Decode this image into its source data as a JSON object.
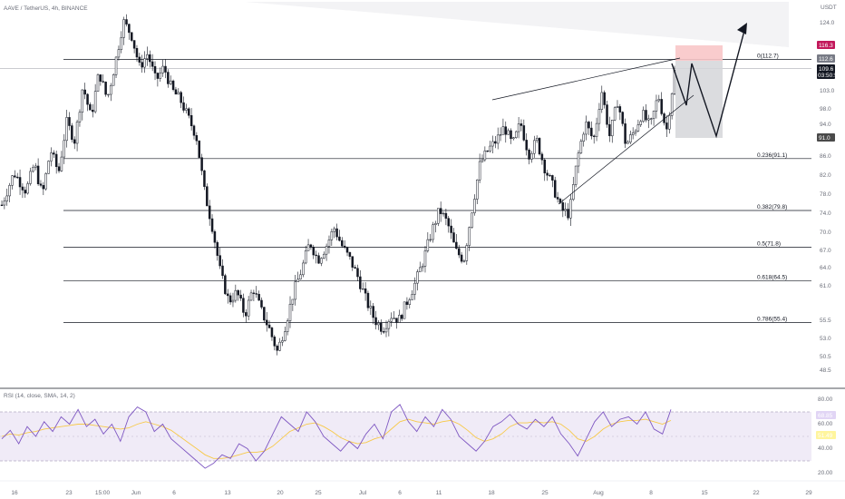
{
  "header": {
    "title": "AAVE / TetherUS, 4h, BINANCE"
  },
  "price_axis": {
    "currency": "USDT",
    "ticks": [
      "124.0",
      "103.0",
      "98.0",
      "94.0",
      "86.0",
      "82.0",
      "78.0",
      "74.0",
      "70.0",
      "67.0",
      "64.0",
      "61.0",
      "55.5",
      "53.0",
      "50.5",
      "48.5"
    ],
    "badges": [
      {
        "label": "116.3",
        "color": "#c2185b",
        "text_color": "#ffffff"
      },
      {
        "label": "112.6",
        "color": "#787b86",
        "text_color": "#ffffff"
      },
      {
        "label": "109.6",
        "sub": "03:50:57",
        "color": "#131722",
        "text_color": "#ffffff"
      },
      {
        "label": "91.0",
        "color": "#4a4a4a",
        "text_color": "#ffffff"
      }
    ]
  },
  "time_axis": {
    "labels": [
      "16",
      "23",
      "15:00",
      "Jun",
      "6",
      "13",
      "20",
      "25",
      "Jul",
      "6",
      "11",
      "18",
      "25",
      "Aug",
      "8",
      "15",
      "22",
      "29"
    ]
  },
  "rsi_panel": {
    "title": "RSI (14, close, SMA, 14, 2)",
    "ticks": [
      "80.00",
      "60.00",
      "40.00",
      "20.00"
    ],
    "badges": [
      {
        "label": "68.85",
        "color": "#e1d5f5",
        "text_color": "#131722"
      },
      {
        "label": "51.49",
        "color": "#fff59d",
        "text_color": "#131722"
      }
    ],
    "colors": {
      "rsi": "#7e57c2",
      "sma": "#f7c948",
      "band": "#ede7f6"
    }
  },
  "chart_data": {
    "type": "candlestick",
    "symbol": "AAVE / TetherUS",
    "timeframe": "4h",
    "exchange": "BINANCE",
    "ylabel": "USDT",
    "ylim": [
      46.5,
      127
    ],
    "fibonacci": {
      "color": "#131722",
      "levels": [
        {
          "label": "0(112.7)",
          "price": 112.7
        },
        {
          "label": "0.236(91.1)",
          "price": 91.1
        },
        {
          "label": "0.382(79.8)",
          "price": 79.8
        },
        {
          "label": "0.5(71.8)",
          "price": 71.8
        },
        {
          "label": "0.618(64.5)",
          "price": 64.5
        },
        {
          "label": "0.786(55.4)",
          "price": 55.4
        }
      ]
    },
    "price_path": [
      [
        0,
        81
      ],
      [
        3,
        88
      ],
      [
        6,
        84
      ],
      [
        8,
        90
      ],
      [
        10,
        83
      ],
      [
        12,
        93
      ],
      [
        14,
        88
      ],
      [
        16,
        99
      ],
      [
        18,
        95
      ],
      [
        20,
        107
      ],
      [
        22,
        100
      ],
      [
        24,
        110
      ],
      [
        26,
        104
      ],
      [
        28,
        112
      ],
      [
        30,
        121
      ],
      [
        32,
        118
      ],
      [
        34,
        111
      ],
      [
        36,
        114
      ],
      [
        38,
        108
      ],
      [
        40,
        111
      ],
      [
        42,
        106
      ],
      [
        44,
        104
      ],
      [
        46,
        100
      ],
      [
        48,
        96
      ],
      [
        50,
        84
      ],
      [
        52,
        76
      ],
      [
        54,
        66
      ],
      [
        56,
        60
      ],
      [
        58,
        62
      ],
      [
        60,
        57
      ],
      [
        62,
        63
      ],
      [
        64,
        58
      ],
      [
        66,
        54
      ],
      [
        68,
        49
      ],
      [
        70,
        55
      ],
      [
        72,
        62
      ],
      [
        74,
        67
      ],
      [
        76,
        73
      ],
      [
        78,
        69
      ],
      [
        80,
        72
      ],
      [
        82,
        76
      ],
      [
        84,
        72
      ],
      [
        86,
        69
      ],
      [
        88,
        65
      ],
      [
        90,
        60
      ],
      [
        92,
        56
      ],
      [
        94,
        54
      ],
      [
        96,
        57
      ],
      [
        98,
        56
      ],
      [
        100,
        60
      ],
      [
        102,
        64
      ],
      [
        104,
        69
      ],
      [
        106,
        75
      ],
      [
        108,
        80
      ],
      [
        110,
        77
      ],
      [
        112,
        71
      ],
      [
        114,
        69
      ],
      [
        116,
        80
      ],
      [
        118,
        90
      ],
      [
        120,
        93
      ],
      [
        122,
        95
      ],
      [
        124,
        98
      ],
      [
        126,
        94
      ],
      [
        128,
        99
      ],
      [
        130,
        92
      ],
      [
        132,
        95
      ],
      [
        134,
        89
      ],
      [
        136,
        85
      ],
      [
        138,
        80
      ],
      [
        140,
        79
      ],
      [
        142,
        91
      ],
      [
        144,
        99
      ],
      [
        146,
        95
      ],
      [
        148,
        106
      ],
      [
        150,
        96
      ],
      [
        152,
        104
      ],
      [
        154,
        94
      ],
      [
        156,
        97
      ],
      [
        158,
        101
      ],
      [
        160,
        98
      ],
      [
        162,
        105
      ],
      [
        164,
        97
      ],
      [
        166,
        110
      ]
    ],
    "rsi": {
      "name": "RSI",
      "length": 14,
      "values": [
        48,
        55,
        44,
        58,
        50,
        62,
        54,
        66,
        60,
        72,
        58,
        64,
        52,
        60,
        46,
        66,
        74,
        70,
        54,
        60,
        48,
        42,
        36,
        30,
        24,
        28,
        35,
        32,
        44,
        40,
        30,
        38,
        52,
        66,
        60,
        54,
        70,
        62,
        50,
        44,
        38,
        46,
        40,
        52,
        60,
        48,
        70,
        76,
        62,
        54,
        66,
        58,
        72,
        64,
        50,
        44,
        38,
        46,
        58,
        62,
        68,
        60,
        56,
        64,
        58,
        66,
        52,
        44,
        34,
        48,
        62,
        70,
        58,
        64,
        66,
        60,
        70,
        56,
        52,
        72
      ]
    },
    "rsi_sma": {
      "values": [
        50,
        52,
        51,
        53,
        54,
        56,
        57,
        58,
        59,
        60,
        60,
        59,
        58,
        57,
        56,
        57,
        60,
        62,
        60,
        58,
        55,
        50,
        45,
        40,
        35,
        32,
        32,
        33,
        35,
        37,
        37,
        38,
        42,
        48,
        54,
        57,
        60,
        61,
        58,
        54,
        49,
        46,
        44,
        45,
        48,
        50,
        56,
        62,
        64,
        62,
        61,
        60,
        62,
        63,
        60,
        55,
        49,
        46,
        48,
        52,
        58,
        61,
        61,
        62,
        61,
        62,
        60,
        55,
        48,
        46,
        50,
        56,
        60,
        62,
        63,
        63,
        64,
        62,
        60,
        63
      ]
    },
    "rsi_levels": [
      70,
      30
    ]
  }
}
